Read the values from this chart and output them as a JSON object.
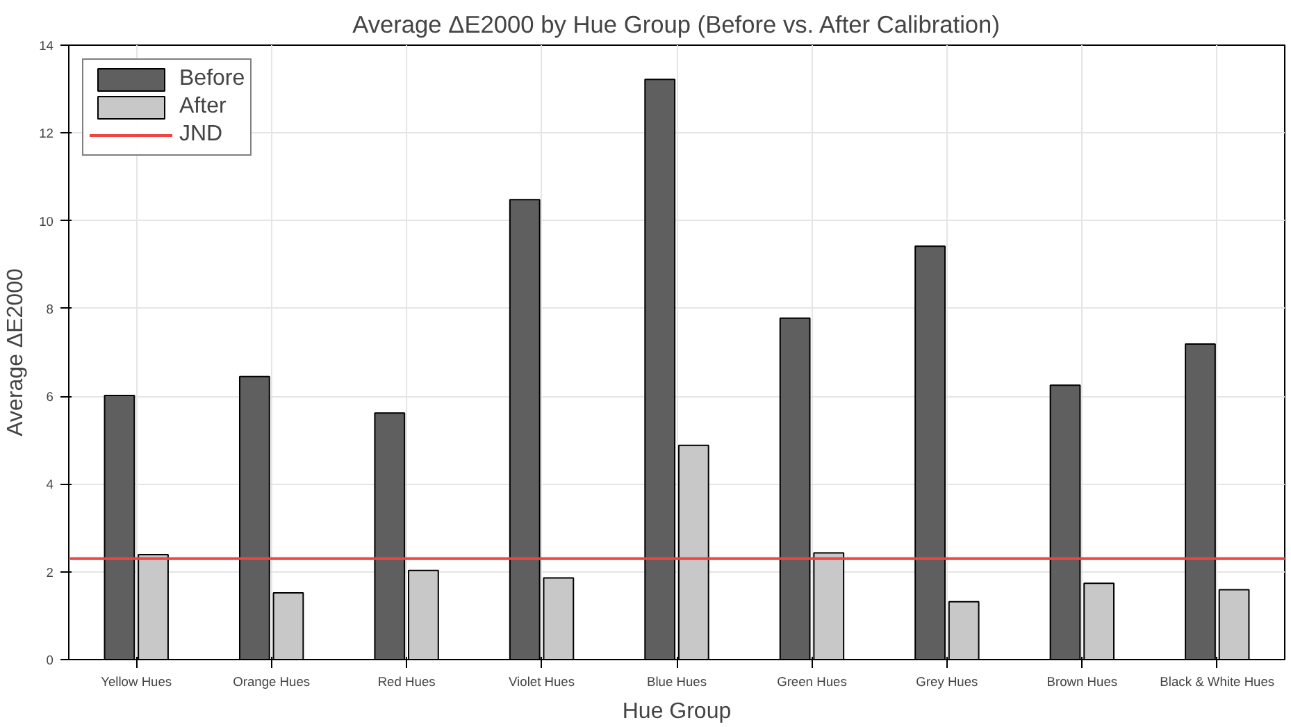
{
  "chart_data": {
    "type": "bar",
    "title": "Average ΔE2000 by Hue Group (Before vs. After Calibration)",
    "xlabel": "Hue Group",
    "ylabel": "Average ΔE2000",
    "categories": [
      "Yellow Hues",
      "Orange Hues",
      "Red Hues",
      "Violet Hues",
      "Blue Hues",
      "Green Hues",
      "Grey Hues",
      "Brown Hues",
      "Black & White Hues"
    ],
    "series": [
      {
        "name": "Before",
        "color": "#5f5f5f",
        "values": [
          6.02,
          6.45,
          5.62,
          10.48,
          13.22,
          7.78,
          9.42,
          6.25,
          7.19
        ]
      },
      {
        "name": "After",
        "color": "#c8c8c8",
        "values": [
          2.39,
          1.52,
          2.03,
          1.86,
          4.88,
          2.43,
          1.32,
          1.74,
          1.59
        ]
      }
    ],
    "ref_lines": [
      {
        "axis": "y",
        "value": 2.3,
        "label": "JND",
        "color": "#ee4444",
        "line_style": "solid"
      }
    ],
    "ylim": [
      0,
      14
    ],
    "yticks": [
      0,
      2,
      4,
      6,
      8,
      10,
      12,
      14
    ],
    "grid": true,
    "legend": "top left"
  }
}
